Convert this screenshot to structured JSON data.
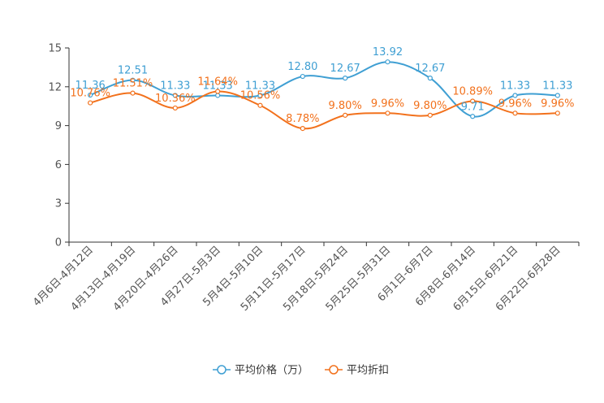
{
  "chart_data": {
    "type": "line",
    "title": "",
    "xlabel": "",
    "ylabel": "",
    "ylim": [
      0,
      15
    ],
    "yticks": [
      0,
      3,
      6,
      9,
      12,
      15
    ],
    "categories": [
      "4月6日-4月12日",
      "4月13日-4月19日",
      "4月20日-4月26日",
      "4月27日-5月3日",
      "5月4日-5月10日",
      "5月11日-5月17日",
      "5月18日-5月24日",
      "5月25日-5月31日",
      "6月1日-6月7日",
      "6月8日-6月14日",
      "6月15日-6月21日",
      "6月22日-6月28日"
    ],
    "series": [
      {
        "name": "平均价格（万）",
        "color": "#3f9fd3",
        "values": [
          11.36,
          12.51,
          11.33,
          11.33,
          11.33,
          12.8,
          12.67,
          13.92,
          12.67,
          9.71,
          11.33,
          11.33
        ],
        "labels": [
          "11.36",
          "12.51",
          "11.33",
          "11.33",
          "11.33",
          "12.80",
          "12.67",
          "13.92",
          "12.67",
          "9.71",
          "11.33",
          "11.33"
        ]
      },
      {
        "name": "平均折扣",
        "color": "#f2711c",
        "values": [
          10.76,
          11.51,
          10.36,
          11.64,
          10.56,
          8.78,
          9.8,
          9.96,
          9.8,
          10.89,
          9.96,
          9.96
        ],
        "labels": [
          "10.76%",
          "11.51%",
          "10.36%",
          "11.64%",
          "10.56%",
          "8.78%",
          "9.80%",
          "9.96%",
          "9.80%",
          "10.89%",
          "9.96%",
          "9.96%"
        ]
      }
    ],
    "legend": "bottom-center",
    "grid": false
  }
}
